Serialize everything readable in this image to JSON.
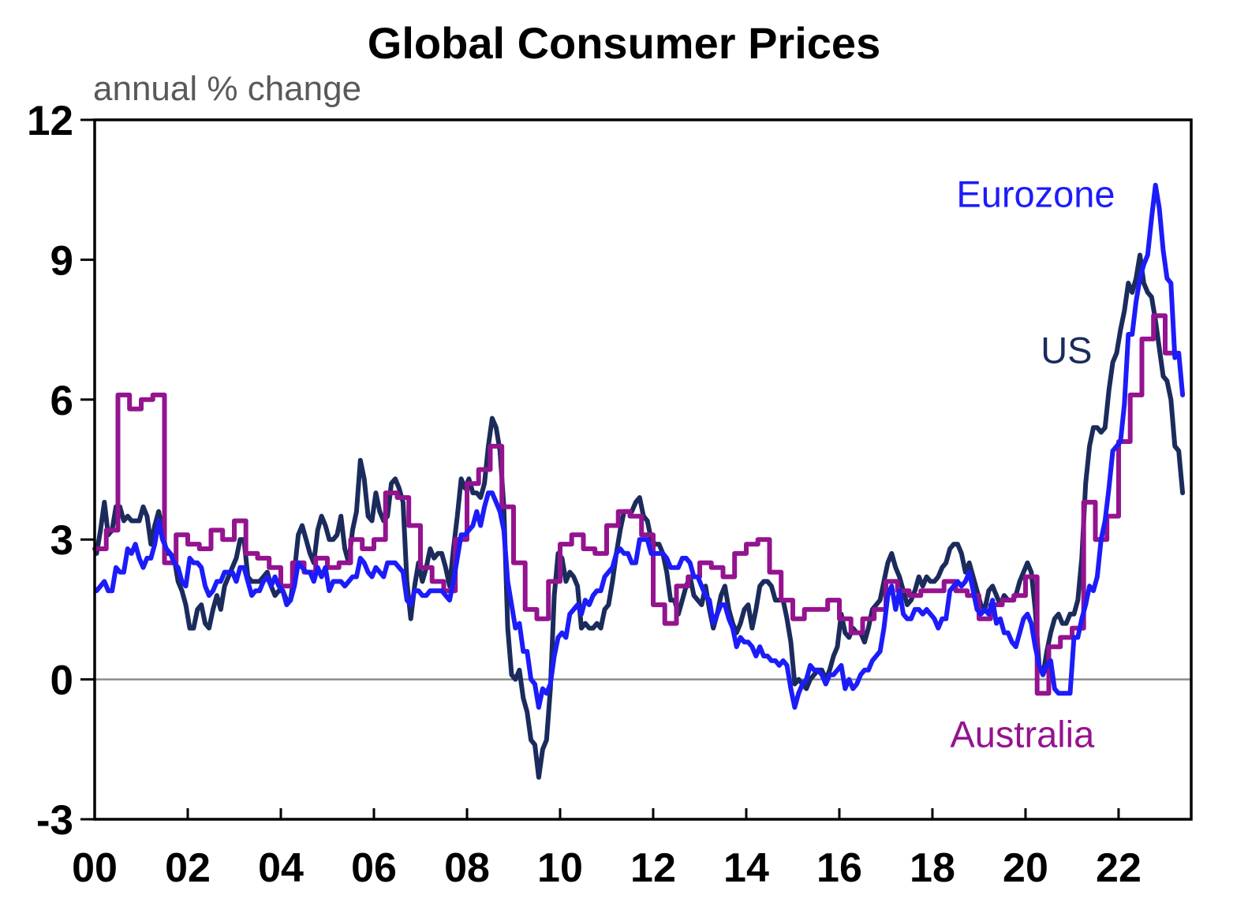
{
  "chart_data": {
    "type": "line",
    "title": "Global Consumer Prices",
    "subtitle": "annual % change",
    "grid": "off",
    "legend_position": "floating-labels",
    "x_axis": {
      "lim": [
        2000,
        2023.56
      ],
      "ticks": [
        {
          "t": 2000,
          "label": "00"
        },
        {
          "t": 2002,
          "label": "02"
        },
        {
          "t": 2004,
          "label": "04"
        },
        {
          "t": 2006,
          "label": "06"
        },
        {
          "t": 2008,
          "label": "08"
        },
        {
          "t": 2010,
          "label": "10"
        },
        {
          "t": 2012,
          "label": "12"
        },
        {
          "t": 2014,
          "label": "14"
        },
        {
          "t": 2016,
          "label": "16"
        },
        {
          "t": 2018,
          "label": "18"
        },
        {
          "t": 2020,
          "label": "20"
        },
        {
          "t": 2022,
          "label": "22"
        }
      ]
    },
    "y_axis": {
      "lim": [
        -3,
        12
      ],
      "ticks": [
        {
          "v": -3,
          "label": "-3"
        },
        {
          "v": 0,
          "label": "0"
        },
        {
          "v": 3,
          "label": "3"
        },
        {
          "v": 6,
          "label": "6"
        },
        {
          "v": 9,
          "label": "9"
        },
        {
          "v": 12,
          "label": "12"
        }
      ]
    },
    "zero_line_color": "#8C8C8C",
    "frame_color": "#000000",
    "series": [
      {
        "name": "US",
        "label": "US",
        "color": "#1B2B5C",
        "cadence": "monthly",
        "start": 2000,
        "label_at": {
          "t": 2020.88,
          "v": 7.05
        },
        "values": [
          2.7,
          3.2,
          3.8,
          3.1,
          3.2,
          3.7,
          3.7,
          3.4,
          3.5,
          3.4,
          3.4,
          3.4,
          3.7,
          3.5,
          2.9,
          3.3,
          3.6,
          3.2,
          2.7,
          2.7,
          2.6,
          2.1,
          1.9,
          1.6,
          1.1,
          1.1,
          1.5,
          1.6,
          1.2,
          1.1,
          1.5,
          1.8,
          1.5,
          2.0,
          2.2,
          2.4,
          2.6,
          3.0,
          3.0,
          2.2,
          2.1,
          2.1,
          2.1,
          2.2,
          2.3,
          2.0,
          1.8,
          1.9,
          1.9,
          1.7,
          1.7,
          2.3,
          3.1,
          3.3,
          3.0,
          2.7,
          2.5,
          3.2,
          3.5,
          3.3,
          3.0,
          3.0,
          3.1,
          3.5,
          2.8,
          2.5,
          3.2,
          3.6,
          4.7,
          4.3,
          3.5,
          3.4,
          4.0,
          3.6,
          3.4,
          3.5,
          4.2,
          4.3,
          4.1,
          3.8,
          2.1,
          1.3,
          2.0,
          2.5,
          2.1,
          2.4,
          2.8,
          2.6,
          2.7,
          2.7,
          2.4,
          2.0,
          2.8,
          3.5,
          4.3,
          4.1,
          4.3,
          4.0,
          4.0,
          3.9,
          4.2,
          5.0,
          5.6,
          5.4,
          4.9,
          3.7,
          1.1,
          0.1,
          0.0,
          0.2,
          -0.4,
          -0.7,
          -1.3,
          -1.4,
          -2.1,
          -1.5,
          -1.3,
          -0.2,
          1.8,
          2.7,
          2.6,
          2.1,
          2.3,
          2.2,
          2.0,
          1.1,
          1.2,
          1.1,
          1.1,
          1.2,
          1.1,
          1.5,
          1.6,
          2.1,
          2.7,
          3.2,
          3.6,
          3.6,
          3.6,
          3.8,
          3.9,
          3.5,
          3.4,
          3.0,
          2.9,
          2.9,
          2.7,
          2.3,
          1.7,
          1.7,
          1.4,
          1.7,
          2.0,
          2.2,
          1.8,
          1.7,
          1.6,
          2.0,
          1.5,
          1.1,
          1.4,
          1.8,
          2.0,
          1.5,
          1.2,
          1.0,
          1.2,
          1.5,
          1.6,
          1.1,
          1.5,
          2.0,
          2.1,
          2.1,
          2.0,
          1.7,
          1.7,
          1.7,
          1.3,
          0.8,
          -0.1,
          0.0,
          -0.1,
          -0.2,
          0.0,
          0.1,
          0.2,
          0.2,
          0.0,
          0.2,
          0.5,
          0.7,
          1.4,
          1.0,
          0.9,
          1.1,
          1.0,
          1.0,
          0.8,
          1.1,
          1.5,
          1.6,
          1.7,
          2.1,
          2.5,
          2.7,
          2.4,
          2.2,
          1.9,
          1.6,
          1.7,
          1.9,
          2.2,
          2.0,
          2.2,
          2.1,
          2.1,
          2.2,
          2.4,
          2.5,
          2.8,
          2.9,
          2.9,
          2.7,
          2.3,
          2.5,
          2.2,
          1.9,
          1.6,
          1.5,
          1.9,
          2.0,
          1.8,
          1.6,
          1.8,
          1.7,
          1.7,
          1.8,
          2.1,
          2.3,
          2.5,
          2.3,
          1.5,
          0.3,
          0.1,
          0.6,
          1.0,
          1.3,
          1.4,
          1.2,
          1.2,
          1.4,
          1.4,
          1.7,
          2.6,
          4.2,
          5.0,
          5.4,
          5.4,
          5.3,
          5.4,
          6.2,
          6.8,
          7.0,
          7.5,
          7.9,
          8.5,
          8.3,
          8.6,
          9.1,
          8.5,
          8.3,
          8.2,
          7.7,
          7.1,
          6.5,
          6.4,
          6.0,
          5.0,
          4.9,
          4.0
        ]
      },
      {
        "name": "Australia",
        "label": "Australia",
        "color": "#94138F",
        "cadence": "quarterly-step",
        "start": 2000,
        "label_at": {
          "t": 2019.93,
          "v": -1.18
        },
        "values": [
          2.8,
          3.2,
          6.1,
          5.8,
          6.0,
          6.1,
          2.5,
          3.1,
          2.9,
          2.8,
          3.2,
          3.0,
          3.4,
          2.7,
          2.6,
          2.4,
          2.0,
          2.5,
          2.3,
          2.6,
          2.4,
          2.5,
          3.0,
          2.8,
          3.0,
          4.0,
          3.9,
          3.3,
          2.4,
          2.1,
          1.9,
          3.0,
          4.2,
          4.5,
          5.0,
          3.7,
          2.5,
          1.5,
          1.3,
          2.1,
          2.9,
          3.1,
          2.8,
          2.7,
          3.3,
          3.6,
          3.5,
          3.1,
          1.6,
          1.2,
          2.0,
          2.2,
          2.5,
          2.4,
          2.2,
          2.7,
          2.9,
          3.0,
          2.3,
          1.7,
          1.3,
          1.5,
          1.5,
          1.7,
          1.3,
          1.0,
          1.3,
          1.5,
          2.1,
          1.9,
          1.8,
          1.9,
          1.9,
          2.1,
          1.9,
          1.8,
          1.3,
          1.6,
          1.7,
          1.8,
          2.2,
          -0.3,
          0.7,
          0.9,
          1.1,
          3.8,
          3.0,
          3.5,
          5.1,
          6.1,
          7.3,
          7.8,
          7.0
        ]
      },
      {
        "name": "Eurozone",
        "label": "Eurozone",
        "color": "#1C1CFA",
        "cadence": "monthly",
        "start": 2000,
        "label_at": {
          "t": 2020.22,
          "v": 10.4
        },
        "values": [
          1.9,
          2.0,
          2.1,
          1.9,
          1.9,
          2.4,
          2.3,
          2.3,
          2.8,
          2.7,
          2.9,
          2.6,
          2.4,
          2.6,
          2.6,
          2.9,
          3.4,
          3.0,
          2.8,
          2.7,
          2.5,
          2.4,
          2.1,
          2.0,
          2.6,
          2.5,
          2.5,
          2.4,
          2.0,
          1.8,
          1.9,
          2.1,
          2.1,
          2.3,
          2.3,
          2.3,
          2.1,
          2.4,
          2.4,
          2.1,
          1.8,
          1.9,
          1.9,
          2.1,
          2.2,
          2.0,
          2.2,
          2.0,
          1.9,
          1.6,
          1.7,
          2.0,
          2.5,
          2.4,
          2.3,
          2.3,
          2.1,
          2.4,
          2.2,
          2.4,
          1.9,
          2.1,
          2.1,
          2.1,
          2.0,
          2.1,
          2.2,
          2.2,
          2.6,
          2.5,
          2.3,
          2.2,
          2.4,
          2.3,
          2.2,
          2.5,
          2.5,
          2.5,
          2.4,
          2.3,
          1.7,
          1.6,
          1.9,
          1.9,
          1.8,
          1.8,
          1.9,
          1.9,
          1.9,
          1.9,
          1.8,
          1.7,
          2.1,
          2.6,
          3.1,
          3.1,
          3.2,
          3.3,
          3.6,
          3.3,
          3.7,
          4.0,
          4.0,
          3.8,
          3.6,
          3.2,
          2.1,
          1.6,
          1.1,
          1.2,
          0.6,
          0.6,
          0.0,
          -0.1,
          -0.6,
          -0.2,
          -0.3,
          -0.1,
          0.5,
          0.9,
          1.0,
          0.9,
          1.4,
          1.5,
          1.6,
          1.4,
          1.7,
          1.6,
          1.8,
          1.9,
          1.9,
          2.2,
          2.3,
          2.4,
          2.7,
          2.8,
          2.7,
          2.7,
          2.5,
          2.5,
          3.0,
          3.0,
          3.0,
          2.7,
          2.7,
          2.7,
          2.7,
          2.6,
          2.4,
          2.4,
          2.4,
          2.6,
          2.6,
          2.5,
          2.2,
          2.2,
          2.0,
          1.8,
          1.7,
          1.2,
          1.4,
          1.6,
          1.6,
          1.3,
          1.1,
          0.7,
          0.9,
          0.8,
          0.8,
          0.7,
          0.5,
          0.7,
          0.5,
          0.5,
          0.4,
          0.4,
          0.3,
          0.4,
          0.3,
          -0.2,
          -0.6,
          -0.3,
          -0.1,
          0.0,
          0.3,
          0.2,
          0.2,
          0.1,
          -0.1,
          0.1,
          0.1,
          0.2,
          0.3,
          -0.2,
          0.0,
          -0.2,
          -0.1,
          0.1,
          0.2,
          0.2,
          0.4,
          0.5,
          0.6,
          1.1,
          1.8,
          2.0,
          1.5,
          1.9,
          1.4,
          1.3,
          1.3,
          1.5,
          1.5,
          1.4,
          1.5,
          1.4,
          1.3,
          1.1,
          1.3,
          1.3,
          1.9,
          2.0,
          2.1,
          2.0,
          2.1,
          2.3,
          1.9,
          1.5,
          1.4,
          1.5,
          1.4,
          1.7,
          1.2,
          1.3,
          1.0,
          1.0,
          0.8,
          0.7,
          1.0,
          1.3,
          1.4,
          1.2,
          0.7,
          0.3,
          0.1,
          0.3,
          0.4,
          -0.2,
          -0.3,
          -0.3,
          -0.3,
          -0.3,
          0.9,
          0.9,
          1.3,
          1.6,
          2.0,
          1.9,
          2.2,
          3.0,
          3.4,
          4.1,
          4.9,
          5.0,
          5.1,
          5.9,
          7.4,
          7.4,
          8.1,
          8.6,
          8.9,
          9.1,
          9.9,
          10.6,
          10.1,
          9.2,
          8.6,
          8.5,
          6.9,
          7.0,
          6.1
        ]
      }
    ]
  }
}
